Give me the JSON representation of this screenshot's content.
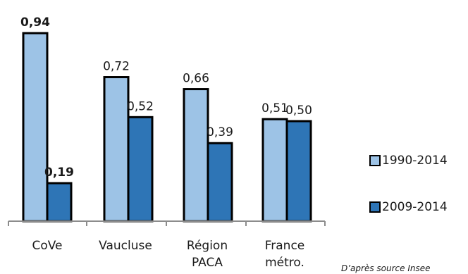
{
  "chart_data": {
    "type": "bar",
    "categories": [
      [
        "CoVe"
      ],
      [
        "Vaucluse"
      ],
      [
        "Région",
        "PACA"
      ],
      [
        "France",
        "métro."
      ]
    ],
    "series": [
      {
        "name": "1990-2014",
        "color": "#9DC3E6",
        "values": [
          0.94,
          0.72,
          0.66,
          0.51
        ],
        "labels": [
          "0,94",
          "0,72",
          "0,66",
          "0,51"
        ]
      },
      {
        "name": "2009-2014",
        "color": "#2E75B6",
        "values": [
          0.19,
          0.52,
          0.39,
          0.5
        ],
        "labels": [
          "0,19",
          "0,52",
          "0,39",
          "0,50"
        ]
      }
    ],
    "bold_labels": [
      "0,94",
      "0,19"
    ],
    "ylim": [
      0,
      1.0
    ],
    "grid": false,
    "legend_position": "right",
    "source_note": "D’après source Insee"
  }
}
